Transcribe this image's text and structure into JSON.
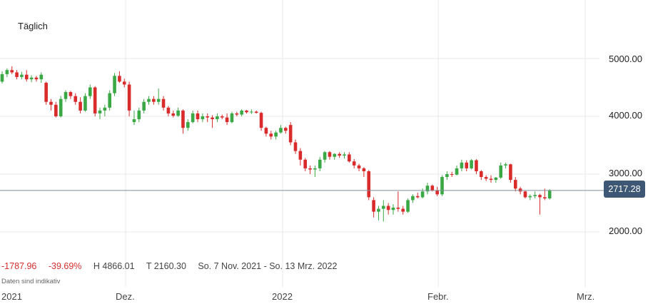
{
  "period_label": "Täglich",
  "stats": {
    "change_abs": "-1787.96",
    "change_pct": "-39.69%",
    "high": "H 4866.01",
    "low": "T 2160.30",
    "range": "So. 7 Nov. 2021 - So. 13 Mrz. 2022"
  },
  "note": "Daten sind indikativ",
  "current_price": "2717.28",
  "colors": {
    "up": "#3aa845",
    "down": "#d92b2b",
    "grid": "#e8e8e8",
    "priceLine": "#7f8c99",
    "tag": "#3e5775"
  },
  "chart_data": {
    "type": "candlestick",
    "title": "",
    "x_range": [
      "2021-11-07",
      "2022-03-13"
    ],
    "y_ticks": [
      "5000.00",
      "4000.00",
      "3000.00",
      "2000.00"
    ],
    "x_ticks": [
      "2021",
      "Dez.",
      "2022",
      "Febr.",
      "Mrz."
    ],
    "ylim": [
      1500,
      5600
    ],
    "current": 2717.28,
    "grid": true,
    "candles": [
      [
        "2021-11-07",
        4600,
        4780,
        4570,
        4730
      ],
      [
        "2021-11-08",
        4730,
        4830,
        4680,
        4800
      ],
      [
        "2021-11-09",
        4800,
        4866,
        4730,
        4760
      ],
      [
        "2021-11-10",
        4760,
        4800,
        4640,
        4680
      ],
      [
        "2021-11-11",
        4680,
        4770,
        4640,
        4720
      ],
      [
        "2021-11-12",
        4720,
        4800,
        4600,
        4640
      ],
      [
        "2021-11-13",
        4640,
        4710,
        4590,
        4670
      ],
      [
        "2021-11-14",
        4670,
        4700,
        4600,
        4640
      ],
      [
        "2021-11-15",
        4640,
        4760,
        4580,
        4720
      ],
      [
        "2021-11-16",
        4580,
        4600,
        4200,
        4250
      ],
      [
        "2021-11-17",
        4250,
        4300,
        4100,
        4200
      ],
      [
        "2021-11-18",
        4200,
        4250,
        3980,
        4000
      ],
      [
        "2021-11-19",
        4000,
        4350,
        3980,
        4300
      ],
      [
        "2021-11-20",
        4300,
        4450,
        4250,
        4420
      ],
      [
        "2021-11-21",
        4420,
        4440,
        4300,
        4350
      ],
      [
        "2021-11-22",
        4350,
        4400,
        4200,
        4250
      ],
      [
        "2021-11-23",
        4250,
        4330,
        4050,
        4100
      ],
      [
        "2021-11-24",
        4100,
        4400,
        4080,
        4350
      ],
      [
        "2021-11-25",
        4350,
        4550,
        4300,
        4500
      ],
      [
        "2021-11-26",
        4500,
        4520,
        4000,
        4050
      ],
      [
        "2021-11-27",
        4050,
        4150,
        3950,
        4100
      ],
      [
        "2021-11-28",
        4100,
        4200,
        4000,
        4150
      ],
      [
        "2021-11-29",
        4150,
        4450,
        4100,
        4400
      ],
      [
        "2021-11-30",
        4400,
        4750,
        4350,
        4700
      ],
      [
        "2021-12-01",
        4700,
        4780,
        4580,
        4600
      ],
      [
        "2021-12-02",
        4600,
        4650,
        4500,
        4550
      ],
      [
        "2021-12-03",
        4550,
        4600,
        4000,
        4100
      ],
      [
        "2021-12-04",
        3900,
        4100,
        3850,
        3950
      ],
      [
        "2021-12-05",
        3950,
        4150,
        3900,
        4100
      ],
      [
        "2021-12-06",
        4100,
        4300,
        4050,
        4250
      ],
      [
        "2021-12-07",
        4250,
        4350,
        4200,
        4300
      ],
      [
        "2021-12-08",
        4300,
        4350,
        4200,
        4250
      ],
      [
        "2021-12-09",
        4250,
        4480,
        4200,
        4300
      ],
      [
        "2021-12-10",
        4300,
        4350,
        4100,
        4150
      ],
      [
        "2021-12-11",
        4150,
        4180,
        4000,
        4050
      ],
      [
        "2021-12-12",
        4050,
        4100,
        3980,
        4010
      ],
      [
        "2021-12-13",
        4010,
        4150,
        3990,
        4100
      ],
      [
        "2021-12-14",
        4100,
        4120,
        3700,
        3800
      ],
      [
        "2021-12-15",
        3800,
        3950,
        3750,
        3900
      ],
      [
        "2021-12-16",
        3900,
        4100,
        3880,
        4050
      ],
      [
        "2021-12-17",
        4050,
        4100,
        3900,
        3950
      ],
      [
        "2021-12-18",
        3950,
        4050,
        3900,
        4000
      ],
      [
        "2021-12-19",
        4000,
        4050,
        3900,
        3980
      ],
      [
        "2021-12-20",
        3980,
        4020,
        3800,
        3950
      ],
      [
        "2021-12-21",
        3950,
        4050,
        3900,
        4000
      ],
      [
        "2021-12-22",
        4000,
        4030,
        3950,
        3980
      ],
      [
        "2021-12-23",
        3980,
        4050,
        3850,
        3900
      ],
      [
        "2021-12-24",
        3900,
        4080,
        3880,
        4050
      ],
      [
        "2021-12-25",
        4050,
        4080,
        4000,
        4030
      ],
      [
        "2021-12-26",
        4030,
        4120,
        4000,
        4100
      ],
      [
        "2021-12-27",
        4100,
        4110,
        4050,
        4070
      ],
      [
        "2021-12-28",
        4070,
        4120,
        4040,
        4080
      ],
      [
        "2021-12-29",
        4080,
        4100,
        4050,
        4060
      ],
      [
        "2021-12-30",
        4060,
        4080,
        3750,
        3800
      ],
      [
        "2021-12-31",
        3800,
        3820,
        3650,
        3700
      ],
      [
        "2022-01-01",
        3700,
        3750,
        3600,
        3650
      ],
      [
        "2022-01-02",
        3650,
        3750,
        3600,
        3720
      ],
      [
        "2022-01-03",
        3720,
        3850,
        3700,
        3800
      ],
      [
        "2022-01-04",
        3800,
        3820,
        3700,
        3750
      ],
      [
        "2022-01-05",
        3850,
        3900,
        3500,
        3550
      ],
      [
        "2022-01-06",
        3550,
        3600,
        3350,
        3400
      ],
      [
        "2022-01-07",
        3400,
        3450,
        3150,
        3250
      ],
      [
        "2022-01-08",
        3250,
        3280,
        3050,
        3100
      ],
      [
        "2022-01-09",
        3100,
        3150,
        3000,
        3080
      ],
      [
        "2022-01-10",
        3080,
        3150,
        2950,
        3100
      ],
      [
        "2022-01-11",
        3100,
        3300,
        3050,
        3250
      ],
      [
        "2022-01-12",
        3250,
        3400,
        3200,
        3380
      ],
      [
        "2022-01-13",
        3380,
        3400,
        3250,
        3300
      ],
      [
        "2022-01-14",
        3300,
        3360,
        3250,
        3350
      ],
      [
        "2022-01-15",
        3350,
        3380,
        3280,
        3320
      ],
      [
        "2022-01-16",
        3320,
        3380,
        3270,
        3340
      ],
      [
        "2022-01-17",
        3340,
        3380,
        3200,
        3220
      ],
      [
        "2022-01-18",
        3220,
        3260,
        3100,
        3150
      ],
      [
        "2022-01-19",
        3150,
        3180,
        3050,
        3100
      ],
      [
        "2022-01-20",
        3100,
        3120,
        2950,
        3050
      ],
      [
        "2022-01-21",
        3050,
        3070,
        2550,
        2600
      ],
      [
        "2022-01-22",
        2550,
        2600,
        2250,
        2350
      ],
      [
        "2022-01-23",
        2350,
        2450,
        2200,
        2400
      ],
      [
        "2022-01-24",
        2400,
        2550,
        2180,
        2450
      ],
      [
        "2022-01-25",
        2450,
        2500,
        2300,
        2380
      ],
      [
        "2022-01-26",
        2380,
        2480,
        2300,
        2420
      ],
      [
        "2022-01-27",
        2420,
        2700,
        2350,
        2400
      ],
      [
        "2022-01-28",
        2400,
        2450,
        2300,
        2350
      ],
      [
        "2022-01-29",
        2350,
        2580,
        2330,
        2550
      ],
      [
        "2022-01-30",
        2550,
        2650,
        2500,
        2620
      ],
      [
        "2022-01-31",
        2620,
        2680,
        2580,
        2600
      ],
      [
        "2022-02-01",
        2600,
        2750,
        2580,
        2700
      ],
      [
        "2022-02-02",
        2700,
        2850,
        2650,
        2800
      ],
      [
        "2022-02-03",
        2800,
        2820,
        2700,
        2720
      ],
      [
        "2022-02-04",
        2720,
        2780,
        2620,
        2650
      ],
      [
        "2022-02-05",
        2650,
        2980,
        2620,
        2950
      ],
      [
        "2022-02-06",
        2950,
        3050,
        2900,
        3000
      ],
      [
        "2022-02-07",
        3000,
        3040,
        2950,
        2990
      ],
      [
        "2022-02-08",
        2990,
        3150,
        2980,
        3100
      ],
      [
        "2022-02-09",
        3100,
        3250,
        3050,
        3200
      ],
      [
        "2022-02-10",
        3200,
        3240,
        3050,
        3100
      ],
      [
        "2022-02-11",
        3100,
        3260,
        3080,
        3240
      ],
      [
        "2022-02-12",
        3240,
        3260,
        3000,
        3050
      ],
      [
        "2022-02-13",
        3050,
        3070,
        2900,
        2950
      ],
      [
        "2022-02-14",
        2950,
        2980,
        2880,
        2920
      ],
      [
        "2022-02-15",
        2920,
        2980,
        2850,
        2900
      ],
      [
        "2022-02-16",
        2900,
        2950,
        2850,
        2940
      ],
      [
        "2022-02-17",
        2940,
        3200,
        2920,
        3150
      ],
      [
        "2022-02-18",
        3150,
        3200,
        3100,
        3170
      ],
      [
        "2022-02-19",
        3170,
        3180,
        2850,
        2900
      ],
      [
        "2022-02-20",
        2900,
        2950,
        2700,
        2750
      ],
      [
        "2022-02-21",
        2750,
        2780,
        2650,
        2700
      ],
      [
        "2022-02-22",
        2700,
        2720,
        2580,
        2600
      ],
      [
        "2022-02-23",
        2600,
        2650,
        2550,
        2620
      ],
      [
        "2022-02-24",
        2620,
        2700,
        2580,
        2640
      ],
      [
        "2022-02-25",
        2640,
        2660,
        2300,
        2600
      ],
      [
        "2022-02-26",
        2600,
        2750,
        2550,
        2580
      ],
      [
        "2022-02-27",
        2580,
        2740,
        2560,
        2717.28
      ]
    ]
  }
}
